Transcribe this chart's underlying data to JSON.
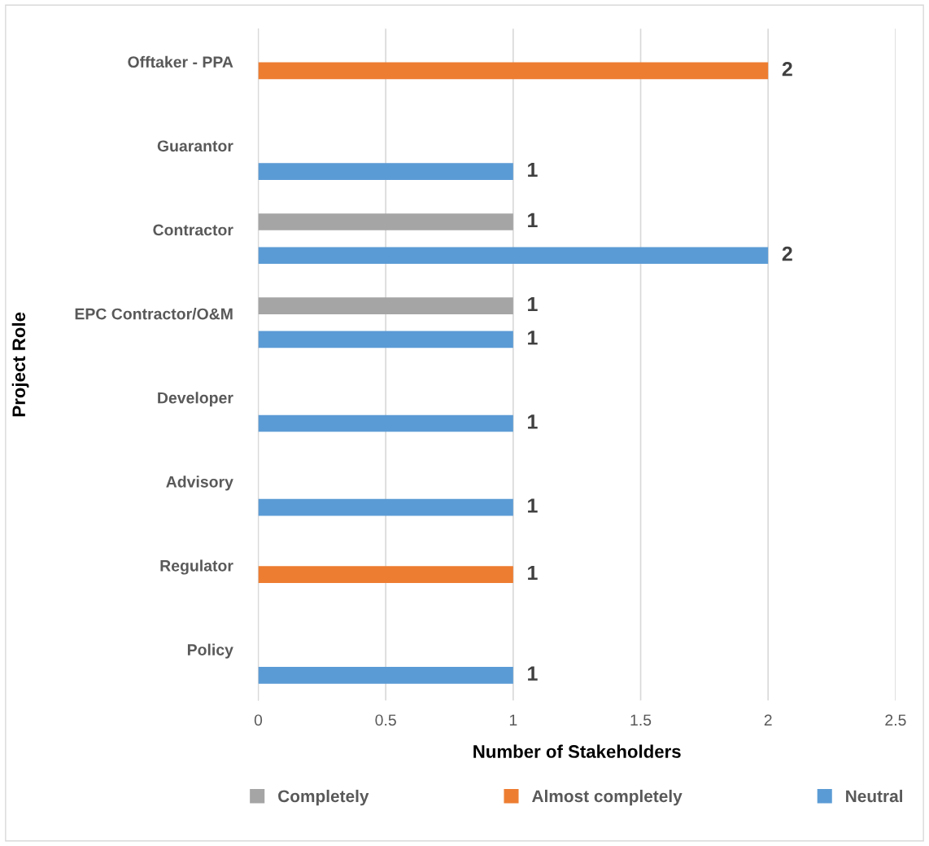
{
  "chart_data": {
    "type": "bar",
    "orientation": "horizontal",
    "xlabel": "Number of Stakeholders",
    "ylabel": "Project Role",
    "categories": [
      "Offtaker - PPA",
      "Guarantor",
      "Contractor",
      "EPC Contractor/O&M",
      "Developer",
      "Advisory",
      "Regulator",
      "Policy"
    ],
    "series": [
      {
        "name": "Completely",
        "color": "#a5a5a5",
        "values": [
          null,
          null,
          1,
          1,
          null,
          null,
          null,
          null
        ]
      },
      {
        "name": "Almost completely",
        "color": "#ed7d31",
        "values": [
          2,
          null,
          null,
          null,
          null,
          null,
          1,
          null
        ]
      },
      {
        "name": "Neutral",
        "color": "#5b9bd5",
        "values": [
          null,
          1,
          2,
          1,
          1,
          1,
          null,
          1
        ]
      }
    ],
    "xlim": [
      0,
      2.5
    ],
    "xticks": [
      0,
      0.5,
      1,
      1.5,
      2,
      2.5
    ],
    "grid": "x",
    "legend": "bottom",
    "data_labels": true
  }
}
